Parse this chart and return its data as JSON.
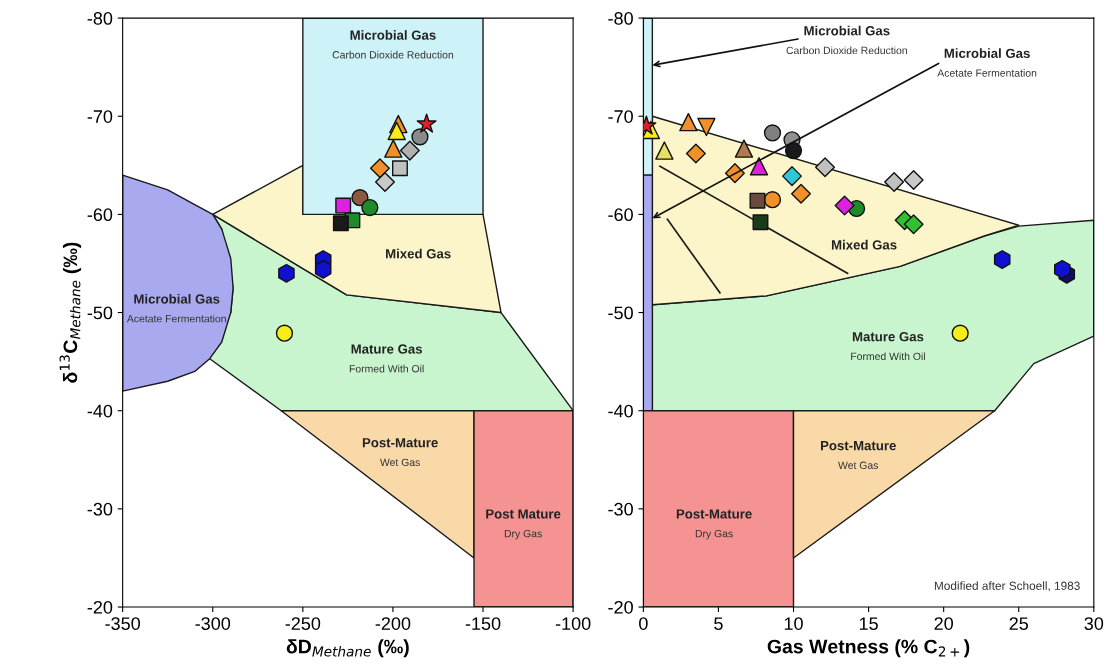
{
  "chart_data": [
    {
      "type": "scatter",
      "xlabel": "δD$_{Methane}$ (‰)",
      "ylabel": "δ$^{13}$C$_{Methane}$ (‰)",
      "xlim": [
        -350,
        -100
      ],
      "ylim": [
        -20,
        -80
      ],
      "xticks": [
        -350,
        -300,
        -250,
        -200,
        -150,
        -100
      ],
      "yticks": [
        -80,
        -70,
        -60,
        -50,
        -40,
        -30,
        -20
      ],
      "grid": false,
      "legend": false,
      "series": [
        {
          "type": "area",
          "color": "#c8f5cd",
          "x": [
            -300,
            -225.7,
            -140,
            -100,
            -262,
            -301.7,
            -290,
            -288.7,
            -295,
            -300
          ],
          "values": [
            -60,
            -51.8,
            -50,
            -40,
            -40,
            -45.3,
            -50,
            -52.5,
            -58.5,
            -60
          ]
        },
        {
          "type": "area",
          "color": "#fbf5c9",
          "x": [
            -300,
            -250,
            -250,
            -150,
            -140,
            -225.7,
            -300
          ],
          "values": [
            -60,
            -65,
            -60,
            -60,
            -50,
            -51.8,
            -60
          ]
        },
        {
          "type": "area",
          "color": "#cdf3f8",
          "x": [
            -250,
            -150,
            -150,
            -250,
            -250
          ],
          "values": [
            -80,
            -80,
            -60,
            -60,
            -80
          ]
        },
        {
          "type": "area",
          "color": "#a9a9f0",
          "x": [
            -350,
            -325,
            -310,
            -300,
            -295,
            -290,
            -288.7,
            -290,
            -295,
            -301.7,
            -310,
            -325,
            -350,
            -350
          ],
          "values": [
            -64,
            -62.5,
            -61,
            -60,
            -58.5,
            -55.5,
            -52.5,
            -50,
            -47,
            -45.3,
            -44,
            -43,
            -42,
            -64
          ]
        },
        {
          "type": "area",
          "color": "#fad9a8",
          "x": [
            -262,
            -155,
            -155,
            -262
          ],
          "values": [
            -40,
            -40,
            -25,
            -40
          ]
        },
        {
          "type": "area",
          "color": "#f59393",
          "x": [
            -155,
            -100,
            -100,
            -155,
            -155
          ],
          "values": [
            -40,
            -40,
            -20,
            -20,
            -40
          ]
        },
        {
          "x": [
            -238.7,
            -238.7,
            -259.1
          ],
          "values": [
            -55.4,
            -54.4,
            -54.0
          ],
          "colors": [
            "#1010d0",
            "#1010d0",
            "#1010d0"
          ]
        },
        {
          "marker": "circle",
          "x": [
            -185,
            -218.3,
            -212.8,
            -260.2
          ],
          "values": [
            -67.9,
            -61.7,
            -60.7,
            -47.9
          ],
          "colors": [
            "#8a8a8a",
            "#8a5a40",
            "#1f8a2a",
            "#f5ec1a"
          ]
        },
        {
          "marker": "square",
          "x": [
            -196.1,
            -227.6,
            -222.5,
            -228.9
          ],
          "values": [
            -64.7,
            -60.9,
            -59.4,
            -59.1
          ],
          "colors": [
            "#c0c0c0",
            "#e020e0",
            "#1f8a2a",
            "#1a1a1a"
          ]
        },
        {
          "marker": "diamond",
          "x": [
            -190.6,
            -207.2,
            -204.4
          ],
          "values": [
            -66.5,
            -64.7,
            -63.3
          ],
          "colors": [
            "#b0b0b0",
            "#f0902a",
            "#c8c8c8"
          ]
        },
        {
          "marker": "triangle",
          "x": [
            -197,
            -197.9,
            -199.8
          ],
          "values": [
            -69.2,
            -68.5,
            -66.7
          ],
          "colors": [
            "#f0902a",
            "#f5ec1a",
            "#f0902a"
          ]
        },
        {
          "marker": "star",
          "x": [
            -181.3
          ],
          "values": [
            -69.2
          ],
          "colors": [
            "#e0202a"
          ]
        }
      ],
      "annotations": [
        "Microbial Gas\nCarbon Dioxide Reduction",
        "Mixed Gas",
        "Microbial Gas\nAcetate Fermentation",
        "Mature Gas\nFormed With Oil",
        "Post-Mature\nWet Gas",
        "Post Mature\nDry Gas"
      ]
    },
    {
      "type": "scatter",
      "xlabel": "Gas Wetness (% C$_{2+}$)",
      "xlim": [
        0,
        30
      ],
      "ylim": [
        -20,
        -80
      ],
      "xticks": [
        0,
        5,
        10,
        15,
        20,
        25,
        30
      ],
      "yticks": [
        -80,
        -70,
        -60,
        -50,
        -40,
        -30,
        -20
      ],
      "grid": false,
      "legend": false,
      "series": [
        {
          "type": "area",
          "color": "#c8f5cd",
          "x": [
            0.6,
            8.2,
            17.1,
            22.7,
            25,
            30,
            30,
            26,
            23.4,
            0.6,
            0.6
          ],
          "values": [
            -50.8,
            -51.7,
            -54.7,
            -57.8,
            -58.8,
            -59.4,
            -47.6,
            -44.8,
            -40,
            -40,
            -50.8
          ]
        },
        {
          "type": "area",
          "color": "#fbf5c9",
          "x": [
            0.6,
            25,
            22.7,
            17.1,
            8.2,
            0.6,
            0.6
          ],
          "values": [
            -70,
            -58.9,
            -57.8,
            -54.7,
            -51.7,
            -50.8,
            -70
          ]
        },
        {
          "type": "area",
          "color": "#cdf3f8",
          "x": [
            0,
            0.6,
            0.6,
            0,
            0
          ],
          "values": [
            -80,
            -80,
            -64,
            -64,
            -80
          ]
        },
        {
          "type": "area",
          "color": "#a9a9f0",
          "x": [
            0,
            0.6,
            0.6,
            0,
            0
          ],
          "values": [
            -64,
            -64,
            -40,
            -40,
            -64
          ]
        },
        {
          "type": "area",
          "color": "#f59393",
          "x": [
            0,
            10,
            10,
            0,
            0
          ],
          "values": [
            -40,
            -40,
            -20,
            -20,
            -40
          ]
        },
        {
          "type": "area",
          "color": "#fad9a8",
          "x": [
            10,
            23.4,
            10,
            10
          ],
          "values": [
            -40,
            -40,
            -25,
            -40
          ]
        },
        {
          "type": "line",
          "color": "#1a1a1a",
          "x": [
            1.1,
            13.6
          ],
          "values": [
            -64.9,
            -54.0
          ]
        },
        {
          "type": "line",
          "color": "#1a1a1a",
          "x": [
            1.6,
            5.1
          ],
          "values": [
            -59.5,
            -52.0
          ]
        },
        {
          "x": [
            23.9,
            28.2,
            27.9
          ],
          "values": [
            -55.4,
            -53.9,
            -54.4
          ],
          "colors": [
            "#1010d0",
            "#101060",
            "#1010d0"
          ]
        },
        {
          "marker": "circle",
          "x": [
            8.6,
            9.9,
            10.0,
            8.6,
            14.2,
            21.1
          ],
          "values": [
            -68.3,
            -67.6,
            -66.5,
            -61.5,
            -60.6,
            -47.9
          ],
          "colors": [
            "#808080",
            "#909090",
            "#1a1a1a",
            "#f0902a",
            "#1f8a2a",
            "#f5ec1a"
          ]
        },
        {
          "marker": "square",
          "x": [
            7.6,
            7.8
          ],
          "values": [
            -61.4,
            -59.2
          ],
          "colors": [
            "#6a4a3a",
            "#1a3a1a"
          ]
        },
        {
          "marker": "diamond",
          "x": [
            3.5,
            6.1,
            9.9,
            12.1,
            16.7,
            18.0,
            10.5,
            13.4,
            17.4,
            18.0
          ],
          "values": [
            -66.2,
            -64.2,
            -63.9,
            -64.8,
            -63.3,
            -63.5,
            -62.1,
            -60.9,
            -59.4,
            -59.0
          ],
          "colors": [
            "#f0902a",
            "#f0902a",
            "#30c8d8",
            "#c0c0c0",
            "#c0c0c0",
            "#c8c8c8",
            "#f0902a",
            "#e020e0",
            "#30c030",
            "#30c030"
          ]
        },
        {
          "marker": "triangle_down",
          "x": [
            4.2
          ],
          "values": [
            -68.9
          ],
          "colors": [
            "#f0902a"
          ]
        },
        {
          "marker": "triangle",
          "x": [
            0.5,
            3.0,
            1.4,
            6.7,
            7.7
          ],
          "values": [
            -68.6,
            -69.4,
            -66.5,
            -66.7,
            -64.9
          ],
          "colors": [
            "#f5ec1a",
            "#f0902a",
            "#e8e060",
            "#b07a50",
            "#e020e0"
          ]
        },
        {
          "marker": "star",
          "x": [
            0.2
          ],
          "values": [
            -69.0
          ],
          "colors": [
            "#e0202a"
          ]
        }
      ],
      "annotations": [
        {
          "text": "Microbial Gas\nCarbon Dioxide Reduction",
          "x": 0.6,
          "y": -75.2
        },
        {
          "text": "Microbial Gas\nAcetate Fermentation",
          "x": 0.6,
          "y": -59.6
        },
        "Mixed Gas",
        "Mature Gas\nFormed With Oil",
        "Post-Mature\nWet Gas",
        "Post-Mature\nDry Gas",
        "Modified after Schoell, 1983"
      ]
    }
  ]
}
